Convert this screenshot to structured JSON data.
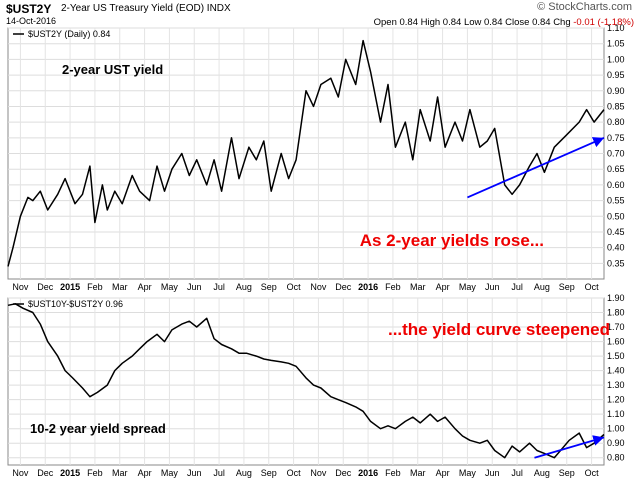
{
  "header": {
    "symbol": "$UST2Y",
    "description": "2-Year US Treasury Yield (EOD)  INDX",
    "date": "14-Oct-2016",
    "brand": "© StockCharts.com",
    "ohlc": "Open 0.84  High 0.84  Low 0.84  Close 0.84  Chg",
    "chg": "-0.01 (-1.18%)"
  },
  "chart_data": [
    {
      "type": "line",
      "legend": "$UST2Y (Daily) 0.84",
      "annotations": [
        "2-year UST yield",
        "As 2-year yields rose..."
      ],
      "annotation_color": "#ee0000",
      "arrow_color": "#0000ff",
      "line_color": "#000000",
      "grid": true,
      "ylim": [
        0.3,
        1.1
      ],
      "yticks": [
        "1.10",
        "1.05",
        "1.00",
        "0.95",
        "0.90",
        "0.85",
        "0.80",
        "0.75",
        "0.70",
        "0.65",
        "0.60",
        "0.55",
        "0.50",
        "0.45",
        "0.40",
        "0.35"
      ],
      "x": [
        0,
        0.2,
        0.5,
        0.8,
        1,
        1.3,
        1.6,
        2,
        2.3,
        2.7,
        3,
        3.3,
        3.5,
        3.8,
        4,
        4.3,
        4.6,
        5,
        5.3,
        5.7,
        6,
        6.3,
        6.6,
        7,
        7.3,
        7.6,
        8,
        8.3,
        8.6,
        9,
        9.3,
        9.7,
        10,
        10.3,
        10.6,
        11,
        11.3,
        11.6,
        12,
        12.3,
        12.6,
        13,
        13.3,
        13.6,
        14,
        14.3,
        14.6,
        15,
        15.3,
        15.6,
        16,
        16.3,
        16.6,
        17,
        17.3,
        17.6,
        18,
        18.3,
        18.6,
        19,
        19.3,
        19.6,
        20,
        20.3,
        20.6,
        21,
        21.3,
        21.6,
        22,
        22.5,
        23,
        23.3,
        23.6,
        24
      ],
      "values": [
        0.34,
        0.4,
        0.5,
        0.56,
        0.55,
        0.58,
        0.52,
        0.57,
        0.62,
        0.54,
        0.57,
        0.66,
        0.48,
        0.6,
        0.52,
        0.58,
        0.54,
        0.63,
        0.58,
        0.55,
        0.66,
        0.58,
        0.65,
        0.7,
        0.63,
        0.68,
        0.6,
        0.68,
        0.58,
        0.75,
        0.62,
        0.72,
        0.68,
        0.74,
        0.58,
        0.7,
        0.62,
        0.68,
        0.9,
        0.85,
        0.92,
        0.94,
        0.88,
        1.0,
        0.92,
        1.06,
        0.96,
        0.8,
        0.92,
        0.72,
        0.8,
        0.68,
        0.84,
        0.74,
        0.88,
        0.72,
        0.8,
        0.74,
        0.84,
        0.72,
        0.74,
        0.78,
        0.6,
        0.57,
        0.6,
        0.66,
        0.7,
        0.64,
        0.72,
        0.76,
        0.8,
        0.84,
        0.8,
        0.84
      ],
      "arrow": {
        "from": [
          18.5,
          0.56
        ],
        "to": [
          24,
          0.75
        ]
      }
    },
    {
      "type": "line",
      "legend": "$UST10Y-$UST2Y 0.96",
      "annotations": [
        "...the yield curve steepened",
        "10-2 year yield spread"
      ],
      "annotation_color": "#ee0000",
      "arrow_color": "#0000ff",
      "line_color": "#000000",
      "grid": true,
      "ylim": [
        0.75,
        1.9
      ],
      "yticks": [
        "1.90",
        "1.80",
        "1.70",
        "1.60",
        "1.50",
        "1.40",
        "1.30",
        "1.20",
        "1.10",
        "1.00",
        "0.90",
        "0.80"
      ],
      "x": [
        0,
        0.3,
        0.6,
        1,
        1.3,
        1.6,
        2,
        2.3,
        2.6,
        3,
        3.3,
        3.6,
        4,
        4.3,
        4.6,
        5,
        5.3,
        5.6,
        6,
        6.3,
        6.6,
        7,
        7.3,
        7.6,
        8,
        8.3,
        8.6,
        9,
        9.3,
        9.6,
        10,
        10.3,
        10.6,
        11,
        11.3,
        11.6,
        12,
        12.3,
        12.6,
        13,
        13.3,
        13.6,
        14,
        14.3,
        14.6,
        15,
        15.3,
        15.6,
        16,
        16.3,
        16.6,
        17,
        17.3,
        17.6,
        18,
        18.3,
        18.6,
        19,
        19.3,
        19.6,
        20,
        20.3,
        20.6,
        21,
        21.3,
        21.6,
        22,
        22.3,
        22.6,
        23,
        23.3,
        23.6,
        24
      ],
      "values": [
        1.85,
        1.86,
        1.83,
        1.8,
        1.72,
        1.6,
        1.5,
        1.4,
        1.35,
        1.28,
        1.22,
        1.25,
        1.3,
        1.4,
        1.45,
        1.5,
        1.55,
        1.6,
        1.65,
        1.6,
        1.68,
        1.72,
        1.74,
        1.7,
        1.76,
        1.62,
        1.58,
        1.55,
        1.52,
        1.52,
        1.5,
        1.48,
        1.47,
        1.46,
        1.45,
        1.43,
        1.35,
        1.3,
        1.28,
        1.22,
        1.2,
        1.18,
        1.15,
        1.12,
        1.05,
        1.0,
        1.02,
        1.0,
        1.05,
        1.08,
        1.04,
        1.1,
        1.05,
        1.08,
        1.0,
        0.95,
        0.92,
        0.9,
        0.92,
        0.85,
        0.8,
        0.88,
        0.84,
        0.9,
        0.85,
        0.83,
        0.8,
        0.86,
        0.92,
        0.97,
        0.87,
        0.9,
        0.96
      ],
      "arrow": {
        "from": [
          21.2,
          0.8
        ],
        "to": [
          24,
          0.94
        ]
      }
    }
  ],
  "xticks": [
    "Nov",
    "Dec",
    "2015",
    "Feb",
    "Mar",
    "Apr",
    "May",
    "Jun",
    "Jul",
    "Aug",
    "Sep",
    "Oct",
    "Nov",
    "Dec",
    "2016",
    "Feb",
    "Mar",
    "Apr",
    "May",
    "Jun",
    "Jul",
    "Aug",
    "Sep",
    "Oct"
  ]
}
